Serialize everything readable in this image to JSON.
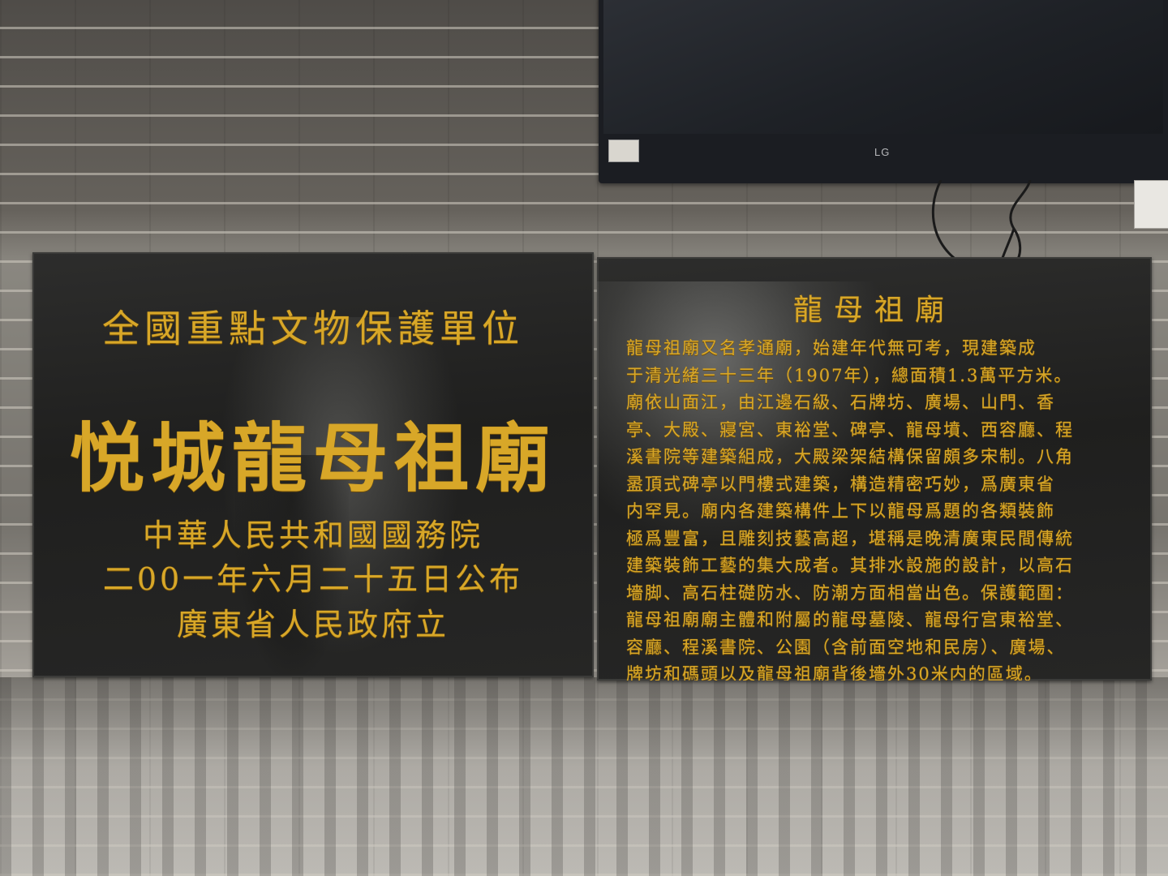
{
  "tv": {
    "brand": "LG"
  },
  "left_tablet": {
    "heading": "全國重點文物保護單位",
    "title": "悦城龍母祖廟",
    "lines": [
      "中華人民共和國國務院",
      "二00一年六月二十五日公布",
      "廣東省人民政府立"
    ]
  },
  "right_tablet": {
    "title": "龍母祖廟",
    "body_lines": [
      "龍母祖廟又名孝通廟，始建年代無可考，現建築成",
      "于清光緒三十三年（1907年），總面積1.3萬平方米。",
      "廟依山面江，由江邊石級、石牌坊、廣場、山門、香",
      "亭、大殿、寢宮、東裕堂、碑亭、龍母墳、西容廳、程",
      "溪書院等建築組成，大殿梁架結構保留頗多宋制。八角",
      "盝頂式碑亭以門樓式建築，構造精密巧妙，爲廣東省",
      "内罕見。廟内各建築構件上下以龍母爲題的各類裝飾",
      "極爲豐富，且雕刻技藝高超，堪稱是晚清廣東民間傳統",
      "建築裝飾工藝的集大成者。其排水設施的設計，以高石",
      "墻脚、高石柱礎防水、防潮方面相當出色。保護範圍：",
      "龍母祖廟廟主體和附屬的龍母墓陵、龍母行宫東裕堂、",
      "容廳、程溪書院、公園（含前面空地和民房）、廣場、",
      "牌坊和碼頭以及龍母祖廟背後墻外30米内的區域。"
    ]
  },
  "colors": {
    "gold_text": "#d8a728",
    "tablet_stone": "#232322",
    "wall": "#6b6862"
  }
}
